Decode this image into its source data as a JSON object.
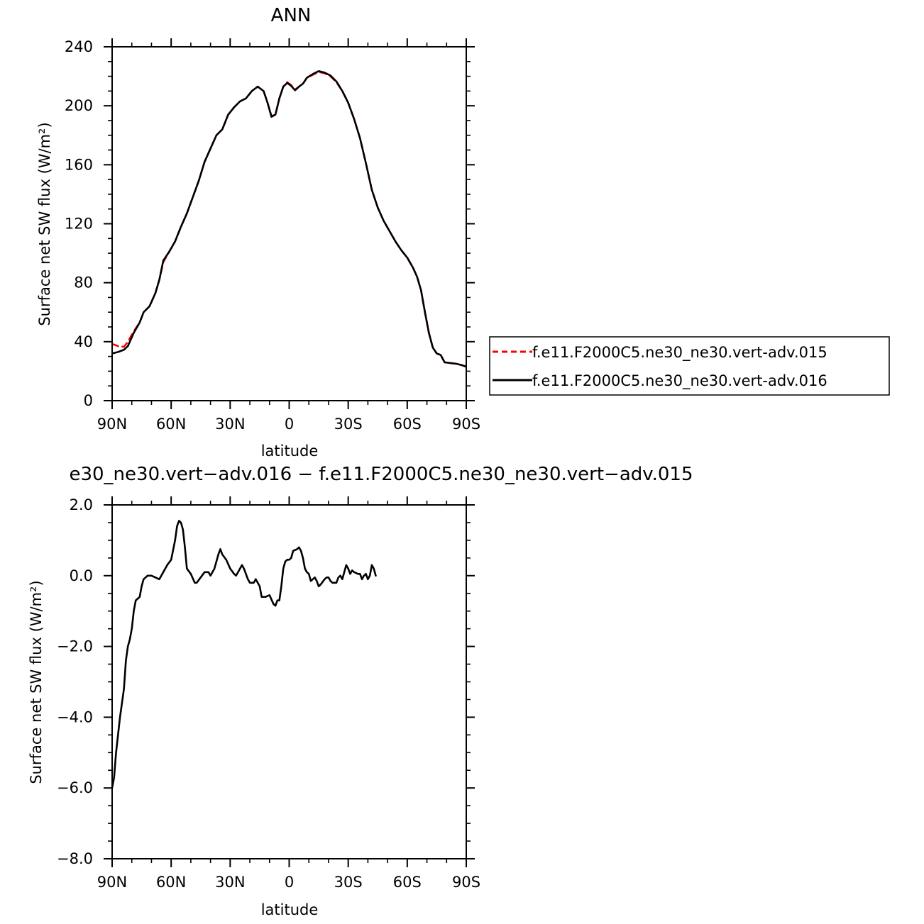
{
  "chart_data": [
    {
      "type": "line",
      "title": "ANN",
      "xlabel": "latitude",
      "ylabel": "Surface net SW flux (W/m²)",
      "xlim": [
        90,
        -90
      ],
      "ylim": [
        0,
        240
      ],
      "xticks": [
        {
          "value": 90,
          "label": "90N"
        },
        {
          "value": 60,
          "label": "60N"
        },
        {
          "value": 30,
          "label": "30N"
        },
        {
          "value": 0,
          "label": "0"
        },
        {
          "value": -30,
          "label": "30S"
        },
        {
          "value": -60,
          "label": "60S"
        },
        {
          "value": -90,
          "label": "90S"
        }
      ],
      "yticks": [
        {
          "value": 0,
          "label": "0"
        },
        {
          "value": 40,
          "label": "40"
        },
        {
          "value": 80,
          "label": "80"
        },
        {
          "value": 120,
          "label": "120"
        },
        {
          "value": 160,
          "label": "160"
        },
        {
          "value": 200,
          "label": "200"
        },
        {
          "value": 240,
          "label": "240"
        }
      ],
      "legend_position": "right",
      "series": [
        {
          "name": "f.e11.F2000C5.ne30_ne30.vert-adv.015",
          "color": "#ff0000",
          "dash": "dashed",
          "points": [
            [
              90,
              38.5
            ],
            [
              87,
              37
            ],
            [
              84,
              36.5
            ],
            [
              82,
              40
            ],
            [
              79,
              47
            ],
            [
              76,
              53
            ],
            [
              74,
              60
            ],
            [
              71,
              64
            ],
            [
              68,
              73
            ],
            [
              66,
              82
            ],
            [
              64,
              94
            ],
            [
              61,
              101
            ],
            [
              58,
              108
            ],
            [
              55,
              118
            ],
            [
              52,
              127
            ],
            [
              49,
              138
            ],
            [
              46,
              149
            ],
            [
              43,
              162
            ],
            [
              40,
              171
            ],
            [
              37,
              180
            ],
            [
              34,
              184
            ],
            [
              31,
              194
            ],
            [
              28,
              199
            ],
            [
              25,
              203
            ],
            [
              22,
              205
            ],
            [
              19,
              210
            ],
            [
              16,
              213
            ],
            [
              13,
              210
            ],
            [
              11,
              202
            ],
            [
              9,
              193
            ],
            [
              7,
              194
            ],
            [
              5,
              205
            ],
            [
              3,
              213
            ],
            [
              1,
              216
            ],
            [
              -1,
              214
            ],
            [
              -3,
              211
            ],
            [
              -5,
              213
            ],
            [
              -7,
              215
            ],
            [
              -9,
              219
            ],
            [
              -12,
              221
            ],
            [
              -15,
              223
            ],
            [
              -18,
              222
            ],
            [
              -21,
              220
            ],
            [
              -24,
              216
            ],
            [
              -27,
              210
            ],
            [
              -30,
              202
            ],
            [
              -33,
              191
            ],
            [
              -36,
              178
            ],
            [
              -39,
              161
            ],
            [
              -42,
              143
            ],
            [
              -45,
              131
            ],
            [
              -48,
              122
            ],
            [
              -51,
              115
            ],
            [
              -54,
              108
            ],
            [
              -57,
              102
            ],
            [
              -60,
              97
            ],
            [
              -63,
              90
            ],
            [
              -65,
              84
            ],
            [
              -67,
              75
            ],
            [
              -69,
              60
            ],
            [
              -71,
              46
            ],
            [
              -73,
              36
            ],
            [
              -75,
              32
            ],
            [
              -77,
              31
            ],
            [
              -79,
              26
            ],
            [
              -82,
              25.5
            ],
            [
              -85,
              25
            ],
            [
              -88,
              24
            ],
            [
              -90,
              23
            ]
          ]
        },
        {
          "name": "f.e11.F2000C5.ne30_ne30.vert-adv.016",
          "color": "#000000",
          "dash": "solid",
          "points": [
            [
              90,
              32
            ],
            [
              87,
              33
            ],
            [
              84,
              34.5
            ],
            [
              82,
              37
            ],
            [
              79,
              46
            ],
            [
              76,
              53
            ],
            [
              74,
              60
            ],
            [
              71,
              64
            ],
            [
              68,
              73
            ],
            [
              66,
              82
            ],
            [
              64,
              95
            ],
            [
              61,
              101
            ],
            [
              58,
              108
            ],
            [
              55,
              118
            ],
            [
              52,
              127
            ],
            [
              49,
              138
            ],
            [
              46,
              149
            ],
            [
              43,
              162
            ],
            [
              40,
              171
            ],
            [
              37,
              180
            ],
            [
              34,
              184
            ],
            [
              31,
              194
            ],
            [
              28,
              199
            ],
            [
              25,
              203
            ],
            [
              22,
              205
            ],
            [
              19,
              210
            ],
            [
              16,
              213
            ],
            [
              13,
              210
            ],
            [
              11,
              202
            ],
            [
              9,
              192.5
            ],
            [
              7,
              194
            ],
            [
              5,
              205
            ],
            [
              3,
              213
            ],
            [
              1,
              215.5
            ],
            [
              -1,
              213.5
            ],
            [
              -3,
              210.5
            ],
            [
              -5,
              213
            ],
            [
              -7,
              215
            ],
            [
              -9,
              219
            ],
            [
              -12,
              221.5
            ],
            [
              -15,
              223.5
            ],
            [
              -18,
              222.5
            ],
            [
              -21,
              220.5
            ],
            [
              -24,
              216.5
            ],
            [
              -27,
              210
            ],
            [
              -30,
              202
            ],
            [
              -33,
              191
            ],
            [
              -36,
              178
            ],
            [
              -39,
              161
            ],
            [
              -42,
              143
            ],
            [
              -45,
              131
            ],
            [
              -48,
              122
            ],
            [
              -51,
              115
            ],
            [
              -54,
              108
            ],
            [
              -57,
              102
            ],
            [
              -60,
              97
            ],
            [
              -63,
              90
            ],
            [
              -65,
              84
            ],
            [
              -67,
              75
            ],
            [
              -69,
              60
            ],
            [
              -71,
              46
            ],
            [
              -73,
              36
            ],
            [
              -75,
              32
            ],
            [
              -77,
              31
            ],
            [
              -79,
              26
            ],
            [
              -82,
              25.5
            ],
            [
              -85,
              25
            ],
            [
              -88,
              24
            ],
            [
              -90,
              23
            ]
          ]
        }
      ]
    },
    {
      "type": "line",
      "title": "e30_ne30.vert−adv.016 − f.e11.F2000C5.ne30_ne30.vert−adv.015",
      "xlabel": "latitude",
      "ylabel": "Surface net SW flux (W/m²)",
      "xlim": [
        90,
        -90
      ],
      "ylim": [
        -8,
        2
      ],
      "xticks": [
        {
          "value": 90,
          "label": "90N"
        },
        {
          "value": 60,
          "label": "60N"
        },
        {
          "value": 30,
          "label": "30N"
        },
        {
          "value": 0,
          "label": "0"
        },
        {
          "value": -30,
          "label": "30S"
        },
        {
          "value": -60,
          "label": "60S"
        },
        {
          "value": -90,
          "label": "90S"
        }
      ],
      "yticks": [
        {
          "value": -8,
          "label": "−8.0"
        },
        {
          "value": -6,
          "label": "−6.0"
        },
        {
          "value": -4,
          "label": "−4.0"
        },
        {
          "value": -2,
          "label": "−2.0"
        },
        {
          "value": 0,
          "label": "0.0"
        },
        {
          "value": 2,
          "label": "2.0"
        }
      ],
      "series": [
        {
          "color": "#000000",
          "dash": "solid",
          "points": [
            [
              90,
              -6.0
            ],
            [
              89,
              -5.7
            ],
            [
              88,
              -5.0
            ],
            [
              86,
              -4.0
            ],
            [
              84,
              -3.2
            ],
            [
              83,
              -2.4
            ],
            [
              82,
              -2.0
            ],
            [
              81,
              -1.8
            ],
            [
              80,
              -1.5
            ],
            [
              79,
              -1.0
            ],
            [
              78,
              -0.7
            ],
            [
              76,
              -0.6
            ],
            [
              75,
              -0.3
            ],
            [
              74,
              -0.1
            ],
            [
              72,
              0.0
            ],
            [
              70,
              0.0
            ],
            [
              68,
              -0.05
            ],
            [
              66,
              -0.1
            ],
            [
              64,
              0.1
            ],
            [
              62,
              0.3
            ],
            [
              60,
              0.45
            ],
            [
              58,
              1.0
            ],
            [
              57,
              1.4
            ],
            [
              56,
              1.55
            ],
            [
              55,
              1.5
            ],
            [
              54,
              1.3
            ],
            [
              53,
              0.8
            ],
            [
              52,
              0.2
            ],
            [
              50,
              0.05
            ],
            [
              48,
              -0.2
            ],
            [
              47,
              -0.2
            ],
            [
              45,
              -0.05
            ],
            [
              43,
              0.1
            ],
            [
              41,
              0.1
            ],
            [
              40,
              0.0
            ],
            [
              38,
              0.2
            ],
            [
              36,
              0.6
            ],
            [
              35,
              0.75
            ],
            [
              34,
              0.6
            ],
            [
              32,
              0.45
            ],
            [
              30,
              0.2
            ],
            [
              28,
              0.05
            ],
            [
              27,
              0.0
            ],
            [
              25,
              0.2
            ],
            [
              24,
              0.3
            ],
            [
              23,
              0.2
            ],
            [
              21,
              -0.1
            ],
            [
              20,
              -0.2
            ],
            [
              18,
              -0.2
            ],
            [
              17,
              -0.1
            ],
            [
              15,
              -0.3
            ],
            [
              14,
              -0.6
            ],
            [
              12,
              -0.6
            ],
            [
              10,
              -0.55
            ],
            [
              8,
              -0.8
            ],
            [
              7,
              -0.85
            ],
            [
              6,
              -0.7
            ],
            [
              5,
              -0.7
            ],
            [
              4,
              -0.3
            ],
            [
              3,
              0.2
            ],
            [
              2,
              0.4
            ],
            [
              1,
              0.45
            ],
            [
              0,
              0.45
            ],
            [
              -1,
              0.5
            ],
            [
              -2,
              0.7
            ],
            [
              -4,
              0.75
            ],
            [
              -5,
              0.8
            ],
            [
              -6,
              0.7
            ],
            [
              -7,
              0.5
            ],
            [
              -8,
              0.2
            ],
            [
              -9,
              0.1
            ],
            [
              -10,
              0.05
            ],
            [
              -11,
              -0.15
            ],
            [
              -12,
              -0.1
            ],
            [
              -13,
              -0.05
            ],
            [
              -14,
              -0.15
            ],
            [
              -15,
              -0.3
            ],
            [
              -16,
              -0.25
            ],
            [
              -18,
              -0.1
            ],
            [
              -19,
              -0.05
            ],
            [
              -20,
              -0.05
            ],
            [
              -21,
              -0.15
            ],
            [
              -22,
              -0.2
            ],
            [
              -24,
              -0.2
            ],
            [
              -25,
              -0.05
            ],
            [
              -26,
              0.0
            ],
            [
              -27,
              -0.1
            ],
            [
              -28,
              0.1
            ],
            [
              -29,
              0.3
            ],
            [
              -30,
              0.2
            ],
            [
              -31,
              0.05
            ],
            [
              -32,
              0.15
            ],
            [
              -33,
              0.1
            ],
            [
              -35,
              0.05
            ],
            [
              -36,
              0.05
            ],
            [
              -37,
              -0.1
            ],
            [
              -38,
              0.0
            ],
            [
              -39,
              0.05
            ],
            [
              -40,
              -0.1
            ],
            [
              -41,
              0.0
            ],
            [
              -42,
              0.3
            ],
            [
              -43,
              0.2
            ],
            [
              -44,
              0.0
            ]
          ]
        }
      ]
    }
  ]
}
